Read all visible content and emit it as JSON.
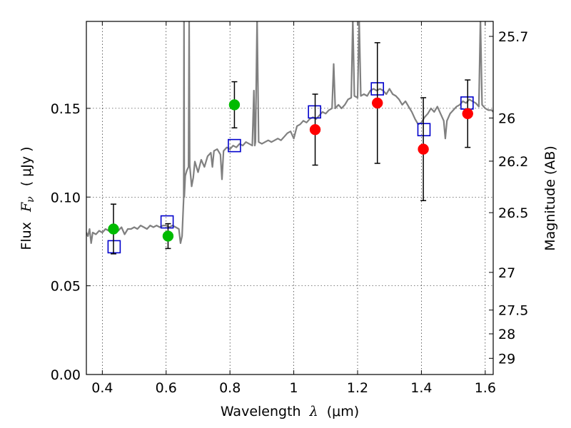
{
  "chart_data": {
    "type": "scatter",
    "xlabel": "Wavelength",
    "xlabel_symbol": "λ",
    "xlabel_unit": "(μm)",
    "ylabel": "Flux",
    "ylabel_symbol": "F",
    "ylabel_subscript": "ν",
    "ylabel_unit": "( μJy )",
    "right_ylabel": "Magnitude (AB)",
    "xlim": [
      0.35,
      1.625
    ],
    "ylim": [
      0.0,
      0.199
    ],
    "grid": true,
    "x_ticks": [
      {
        "value": 0.4,
        "label": "0.4"
      },
      {
        "value": 0.6,
        "label": "0.6"
      },
      {
        "value": 0.8,
        "label": "0.8"
      },
      {
        "value": 1.0,
        "label": "1"
      },
      {
        "value": 1.2,
        "label": "1.2"
      },
      {
        "value": 1.4,
        "label": "1.4"
      },
      {
        "value": 1.6,
        "label": "1.6"
      }
    ],
    "y_ticks": [
      {
        "value": 0.0,
        "label": "0.00"
      },
      {
        "value": 0.05,
        "label": "0.05"
      },
      {
        "value": 0.1,
        "label": "0.10"
      },
      {
        "value": 0.15,
        "label": "0.15"
      }
    ],
    "mag_ticks": [
      {
        "mag": 25.7,
        "label": "25.7"
      },
      {
        "mag": 26.0,
        "label": "26"
      },
      {
        "mag": 26.2,
        "label": "26.2"
      },
      {
        "mag": 26.5,
        "label": "26.5"
      },
      {
        "mag": 27.0,
        "label": "27"
      },
      {
        "mag": 27.5,
        "label": "27.5"
      },
      {
        "mag": 28.0,
        "label": "28"
      },
      {
        "mag": 29.0,
        "label": "29"
      }
    ],
    "series": [
      {
        "kind": "spectrum",
        "color": "#808080",
        "points": [
          [
            0.35,
            0.08
          ],
          [
            0.355,
            0.078
          ],
          [
            0.36,
            0.082
          ],
          [
            0.365,
            0.074
          ],
          [
            0.37,
            0.08
          ],
          [
            0.38,
            0.079
          ],
          [
            0.39,
            0.081
          ],
          [
            0.4,
            0.08
          ],
          [
            0.41,
            0.082
          ],
          [
            0.42,
            0.081
          ],
          [
            0.43,
            0.083
          ],
          [
            0.44,
            0.082
          ],
          [
            0.45,
            0.081
          ],
          [
            0.46,
            0.083
          ],
          [
            0.47,
            0.079
          ],
          [
            0.48,
            0.082
          ],
          [
            0.49,
            0.082
          ],
          [
            0.5,
            0.083
          ],
          [
            0.51,
            0.082
          ],
          [
            0.52,
            0.084
          ],
          [
            0.53,
            0.083
          ],
          [
            0.54,
            0.082
          ],
          [
            0.55,
            0.084
          ],
          [
            0.56,
            0.083
          ],
          [
            0.57,
            0.084
          ],
          [
            0.58,
            0.083
          ],
          [
            0.59,
            0.084
          ],
          [
            0.6,
            0.084
          ],
          [
            0.61,
            0.083
          ],
          [
            0.62,
            0.084
          ],
          [
            0.63,
            0.083
          ],
          [
            0.64,
            0.082
          ],
          [
            0.645,
            0.074
          ],
          [
            0.65,
            0.078
          ],
          [
            0.655,
            0.1
          ],
          [
            0.656,
            0.2
          ],
          [
            0.657,
            0.1
          ],
          [
            0.66,
            0.112
          ],
          [
            0.665,
            0.115
          ],
          [
            0.67,
            0.117
          ],
          [
            0.672,
            0.2
          ],
          [
            0.674,
            0.118
          ],
          [
            0.68,
            0.106
          ],
          [
            0.685,
            0.111
          ],
          [
            0.69,
            0.12
          ],
          [
            0.7,
            0.114
          ],
          [
            0.71,
            0.121
          ],
          [
            0.72,
            0.117
          ],
          [
            0.73,
            0.123
          ],
          [
            0.74,
            0.125
          ],
          [
            0.745,
            0.117
          ],
          [
            0.75,
            0.126
          ],
          [
            0.76,
            0.127
          ],
          [
            0.77,
            0.124
          ],
          [
            0.775,
            0.11
          ],
          [
            0.78,
            0.126
          ],
          [
            0.79,
            0.128
          ],
          [
            0.8,
            0.127
          ],
          [
            0.81,
            0.129
          ],
          [
            0.82,
            0.128
          ],
          [
            0.83,
            0.13
          ],
          [
            0.84,
            0.129
          ],
          [
            0.85,
            0.131
          ],
          [
            0.86,
            0.13
          ],
          [
            0.87,
            0.129
          ],
          [
            0.875,
            0.16
          ],
          [
            0.878,
            0.129
          ],
          [
            0.88,
            0.131
          ],
          [
            0.885,
            0.2
          ],
          [
            0.89,
            0.131
          ],
          [
            0.9,
            0.13
          ],
          [
            0.91,
            0.131
          ],
          [
            0.92,
            0.132
          ],
          [
            0.93,
            0.131
          ],
          [
            0.94,
            0.132
          ],
          [
            0.95,
            0.133
          ],
          [
            0.96,
            0.132
          ],
          [
            0.97,
            0.134
          ],
          [
            0.98,
            0.136
          ],
          [
            0.99,
            0.137
          ],
          [
            1.0,
            0.133
          ],
          [
            1.01,
            0.14
          ],
          [
            1.02,
            0.141
          ],
          [
            1.03,
            0.143
          ],
          [
            1.04,
            0.142
          ],
          [
            1.05,
            0.144
          ],
          [
            1.06,
            0.145
          ],
          [
            1.07,
            0.144
          ],
          [
            1.08,
            0.146
          ],
          [
            1.09,
            0.148
          ],
          [
            1.1,
            0.147
          ],
          [
            1.11,
            0.149
          ],
          [
            1.12,
            0.15
          ],
          [
            1.125,
            0.175
          ],
          [
            1.13,
            0.15
          ],
          [
            1.14,
            0.152
          ],
          [
            1.15,
            0.15
          ],
          [
            1.16,
            0.152
          ],
          [
            1.17,
            0.155
          ],
          [
            1.18,
            0.156
          ],
          [
            1.185,
            0.2
          ],
          [
            1.19,
            0.157
          ],
          [
            1.2,
            0.156
          ],
          [
            1.205,
            0.2
          ],
          [
            1.21,
            0.157
          ],
          [
            1.22,
            0.158
          ],
          [
            1.23,
            0.157
          ],
          [
            1.24,
            0.16
          ],
          [
            1.25,
            0.161
          ],
          [
            1.26,
            0.16
          ],
          [
            1.27,
            0.161
          ],
          [
            1.28,
            0.16
          ],
          [
            1.29,
            0.158
          ],
          [
            1.3,
            0.161
          ],
          [
            1.31,
            0.158
          ],
          [
            1.32,
            0.157
          ],
          [
            1.33,
            0.155
          ],
          [
            1.34,
            0.152
          ],
          [
            1.35,
            0.154
          ],
          [
            1.36,
            0.151
          ],
          [
            1.37,
            0.148
          ],
          [
            1.38,
            0.144
          ],
          [
            1.39,
            0.141
          ],
          [
            1.4,
            0.142
          ],
          [
            1.41,
            0.145
          ],
          [
            1.42,
            0.147
          ],
          [
            1.43,
            0.15
          ],
          [
            1.44,
            0.148
          ],
          [
            1.45,
            0.151
          ],
          [
            1.46,
            0.147
          ],
          [
            1.47,
            0.143
          ],
          [
            1.475,
            0.133
          ],
          [
            1.48,
            0.143
          ],
          [
            1.49,
            0.147
          ],
          [
            1.5,
            0.149
          ],
          [
            1.51,
            0.151
          ],
          [
            1.52,
            0.152
          ],
          [
            1.53,
            0.154
          ],
          [
            1.54,
            0.153
          ],
          [
            1.55,
            0.155
          ],
          [
            1.56,
            0.154
          ],
          [
            1.57,
            0.153
          ],
          [
            1.58,
            0.151
          ],
          [
            1.585,
            0.2
          ],
          [
            1.59,
            0.152
          ],
          [
            1.6,
            0.15
          ],
          [
            1.61,
            0.149
          ],
          [
            1.62,
            0.149
          ],
          [
            1.625,
            0.148
          ]
        ]
      },
      {
        "kind": "observed",
        "color": "#00bb00",
        "points": [
          {
            "x": 0.435,
            "y": 0.082,
            "err": 0.014
          },
          {
            "x": 0.606,
            "y": 0.078,
            "err": 0.007
          },
          {
            "x": 0.814,
            "y": 0.152,
            "err": 0.013
          }
        ]
      },
      {
        "kind": "observed",
        "color": "#ff0000",
        "points": [
          {
            "x": 1.067,
            "y": 0.138,
            "err": 0.02
          },
          {
            "x": 1.262,
            "y": 0.153,
            "err": 0.034
          },
          {
            "x": 1.406,
            "y": 0.127,
            "err": 0.029
          },
          {
            "x": 1.545,
            "y": 0.147,
            "err": 0.019
          }
        ]
      },
      {
        "kind": "model",
        "color": "#0000cc",
        "points": [
          {
            "x": 0.437,
            "y": 0.072
          },
          {
            "x": 0.603,
            "y": 0.086
          },
          {
            "x": 0.814,
            "y": 0.129
          },
          {
            "x": 1.065,
            "y": 0.148
          },
          {
            "x": 1.262,
            "y": 0.161
          },
          {
            "x": 1.408,
            "y": 0.138
          },
          {
            "x": 1.543,
            "y": 0.153
          }
        ]
      }
    ]
  }
}
